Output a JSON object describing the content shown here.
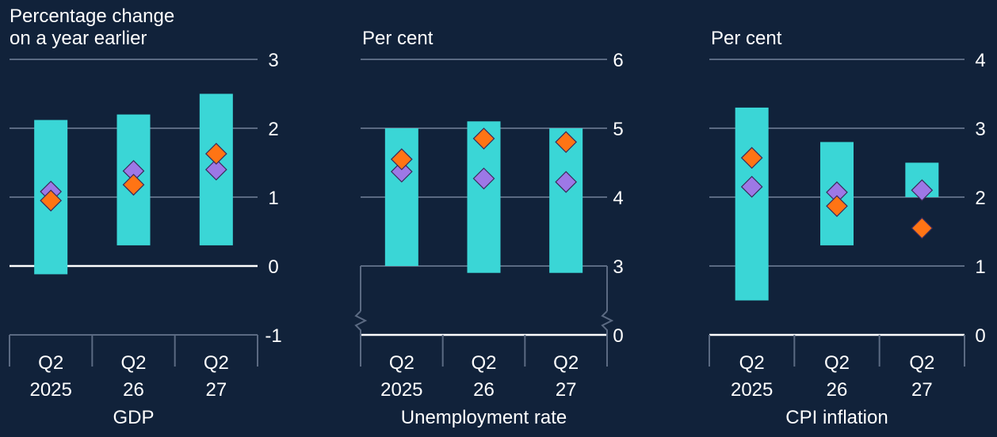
{
  "colors": {
    "background": "#11223a",
    "band": "#3ad6d6",
    "orange_marker": "#ff7414",
    "purple_marker": "#9d78e6",
    "gridline": "#5b6a82",
    "axis_line": "#ffffff",
    "text": "#ffffff"
  },
  "chart_data": [
    {
      "type": "bar",
      "xlabel": "GDP",
      "ylabel": "Percentage change on a year earlier",
      "ylabel_lines": [
        "Percentage change",
        "on a year earlier"
      ],
      "ylim": [
        -1,
        3
      ],
      "yticks": [
        "3",
        "2",
        "1",
        "0",
        "-1"
      ],
      "ytick_values": [
        3,
        2,
        1,
        0,
        -1
      ],
      "zero_line": 0,
      "axis_break": false,
      "categories": [
        [
          "Q2",
          "2025"
        ],
        [
          "Q2",
          "26"
        ],
        [
          "Q2",
          "27"
        ]
      ],
      "ranges": [
        [
          -0.12,
          2.12
        ],
        [
          0.3,
          2.2
        ],
        [
          0.3,
          2.5
        ]
      ],
      "orange": [
        0.95,
        1.18,
        1.63
      ],
      "purple": [
        1.08,
        1.38,
        1.4
      ]
    },
    {
      "type": "bar",
      "xlabel": "Unemployment rate",
      "ylabel": "Per cent",
      "ylabel_lines": [
        "Per cent"
      ],
      "ylim": [
        0,
        6
      ],
      "yticks": [
        "6",
        "5",
        "4",
        "3",
        "0"
      ],
      "ytick_values": [
        6,
        5,
        4,
        3,
        0
      ],
      "zero_line": 0,
      "axis_break": true,
      "categories": [
        [
          "Q2",
          "2025"
        ],
        [
          "Q2",
          "26"
        ],
        [
          "Q2",
          "27"
        ]
      ],
      "ranges": [
        [
          3.0,
          5.0
        ],
        [
          2.9,
          5.1
        ],
        [
          2.9,
          5.0
        ]
      ],
      "orange": [
        4.55,
        4.85,
        4.8
      ],
      "purple": [
        4.37,
        4.27,
        4.22
      ]
    },
    {
      "type": "bar",
      "xlabel": "CPI inflation",
      "ylabel": "Per cent",
      "ylabel_lines": [
        "Per cent"
      ],
      "ylim": [
        0,
        4
      ],
      "yticks": [
        "4",
        "3",
        "2",
        "1",
        "0"
      ],
      "ytick_values": [
        4,
        3,
        2,
        1,
        0
      ],
      "zero_line": 0,
      "axis_break": false,
      "categories": [
        [
          "Q2",
          "2025"
        ],
        [
          "Q2",
          "26"
        ],
        [
          "Q2",
          "27"
        ]
      ],
      "ranges": [
        [
          0.5,
          3.3
        ],
        [
          1.3,
          2.8
        ],
        [
          2.0,
          2.5
        ]
      ],
      "orange": [
        2.57,
        1.87,
        1.55
      ],
      "purple": [
        2.15,
        2.07,
        2.1
      ]
    }
  ]
}
